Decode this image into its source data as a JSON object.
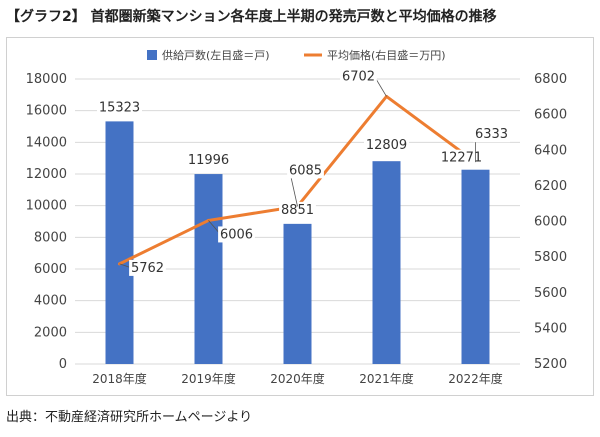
{
  "title": "【グラフ2】 首都圏新築マンション各年度上半期の発売戸数と平均価格の推移",
  "source": "出典：不動産経済研究所ホームページより",
  "colors": {
    "bar": "#4472C4",
    "line": "#ED7D31",
    "grid": "#d9d9d9",
    "text": "#444444"
  },
  "chart_data": {
    "type": "bar+line",
    "categories": [
      "2018年度",
      "2019年度",
      "2020年度",
      "2021年度",
      "2022年度"
    ],
    "series": [
      {
        "name": "供給戸数(左目盛＝戸)",
        "type": "bar",
        "axis": "left",
        "values": [
          15323,
          11996,
          8851,
          12809,
          12271
        ]
      },
      {
        "name": "平均価格(右目盛＝万円)",
        "type": "line",
        "axis": "right",
        "values": [
          5762,
          6006,
          6085,
          6702,
          6333
        ]
      }
    ],
    "left_axis": {
      "min": 0,
      "max": 18000,
      "step": 2000,
      "ticks": [
        "0",
        "2000",
        "4000",
        "6000",
        "8000",
        "10000",
        "12000",
        "14000",
        "16000",
        "18000"
      ]
    },
    "right_axis": {
      "min": 5200,
      "max": 6800,
      "step": 200,
      "ticks": [
        "5200",
        "5400",
        "5600",
        "5800",
        "6000",
        "6200",
        "6400",
        "6600",
        "6800"
      ]
    },
    "legend": "top",
    "grid": true
  }
}
